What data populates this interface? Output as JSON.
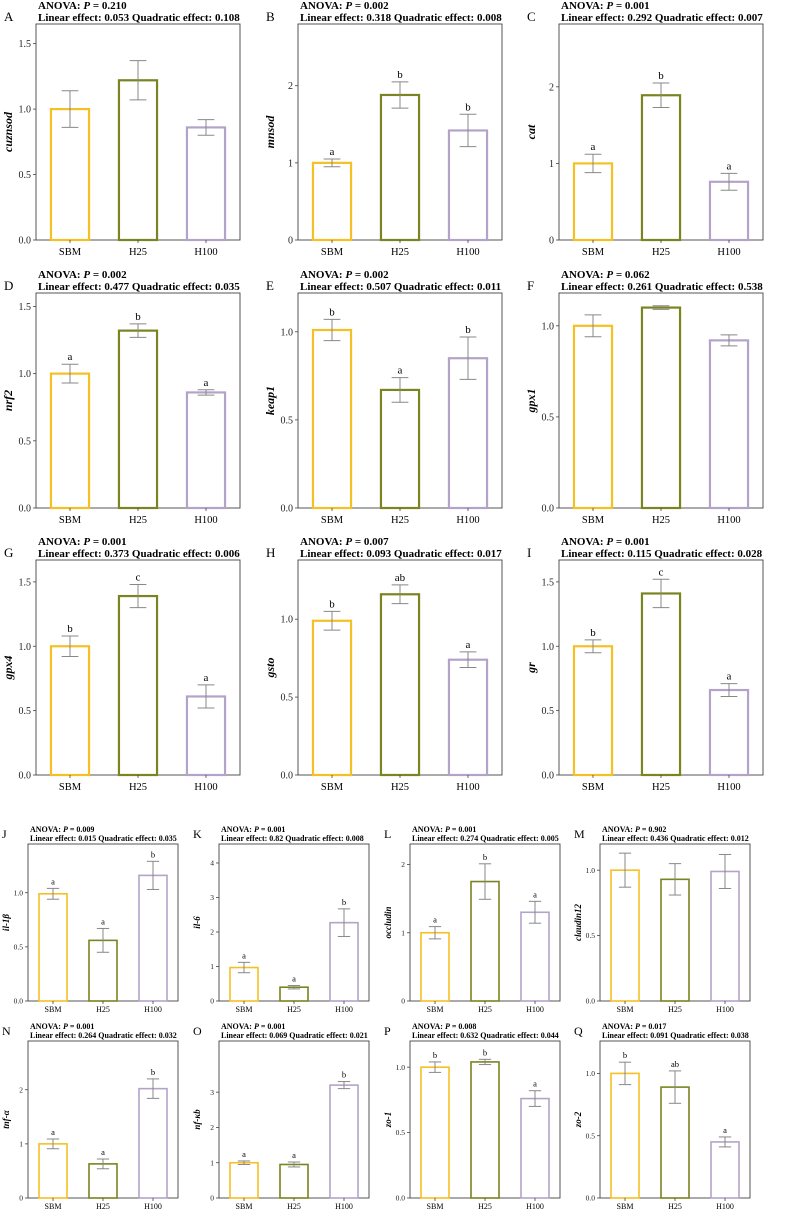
{
  "colors": {
    "SBM": "#F5C024",
    "H25": "#7A8420",
    "H100": "#B4A3C8",
    "error": "#888888",
    "frame": "#444444"
  },
  "chart_data": [
    {
      "panel": "A",
      "type": "bar",
      "categories": [
        "SBM",
        "H25",
        "H100"
      ],
      "ylabel": "cuznsod",
      "values": [
        1.0,
        1.22,
        0.86
      ],
      "errors": [
        0.14,
        0.15,
        0.06
      ],
      "letters": [
        "",
        "",
        ""
      ],
      "ylim": [
        0,
        1.65
      ],
      "yticks": [
        "0.0",
        "0.5",
        "1.0",
        "1.5"
      ],
      "anova_prefix": "ANOVA: ",
      "p_label": "P",
      "anova_p": " = 0.210",
      "linear_label": "Linear effect: ",
      "linear_value": "0.053",
      "quad_label": "Quadratic effect: ",
      "quad_value": "0.108"
    },
    {
      "panel": "B",
      "type": "bar",
      "categories": [
        "SBM",
        "H25",
        "H100"
      ],
      "ylabel": "mnsod",
      "values": [
        1.0,
        1.88,
        1.42
      ],
      "errors": [
        0.05,
        0.17,
        0.21
      ],
      "letters": [
        "a",
        "b",
        "b"
      ],
      "ylim": [
        0,
        2.8
      ],
      "yticks": [
        "0",
        "1",
        "2"
      ],
      "anova_prefix": "ANOVA: ",
      "p_label": "P",
      "anova_p": " = 0.002",
      "linear_label": "Linear effect: ",
      "linear_value": "0.318",
      "quad_label": "Quadratic effect: ",
      "quad_value": "0.008"
    },
    {
      "panel": "C",
      "type": "bar",
      "categories": [
        "SBM",
        "H25",
        "H100"
      ],
      "ylabel": "cat",
      "values": [
        1.0,
        1.89,
        0.76
      ],
      "errors": [
        0.12,
        0.16,
        0.11
      ],
      "letters": [
        "a",
        "b",
        "a"
      ],
      "ylim": [
        0,
        2.82
      ],
      "yticks": [
        "0",
        "1",
        "2"
      ],
      "anova_prefix": "ANOVA: ",
      "p_label": "P",
      "anova_p": " = 0.001",
      "linear_label": "Linear effect: ",
      "linear_value": "0.292",
      "quad_label": "Quadratic effect: ",
      "quad_value": "0.007"
    },
    {
      "panel": "D",
      "type": "bar",
      "categories": [
        "SBM",
        "H25",
        "H100"
      ],
      "ylabel": "nrf2",
      "values": [
        1.0,
        1.32,
        0.86
      ],
      "errors": [
        0.07,
        0.05,
        0.02
      ],
      "letters": [
        "a",
        "b",
        "a"
      ],
      "ylim": [
        0,
        1.6
      ],
      "yticks": [
        "0.0",
        "0.5",
        "1.0",
        "1.5"
      ],
      "anova_prefix": "ANOVA: ",
      "p_label": "P",
      "anova_p": " = 0.002",
      "linear_label": "Linear effect: ",
      "linear_value": "0.477",
      "quad_label": "Quadratic effect: ",
      "quad_value": "0.035"
    },
    {
      "panel": "E",
      "type": "bar",
      "categories": [
        "SBM",
        "H25",
        "H100"
      ],
      "ylabel": "keap1",
      "values": [
        1.01,
        0.67,
        0.85
      ],
      "errors": [
        0.06,
        0.07,
        0.12
      ],
      "letters": [
        "b",
        "a",
        "b"
      ],
      "ylim": [
        0,
        1.22
      ],
      "yticks": [
        "0.0",
        "0.5",
        "1.0"
      ],
      "anova_prefix": "ANOVA: ",
      "p_label": "P",
      "anova_p": " = 0.002",
      "linear_label": "Linear effect: ",
      "linear_value": "0.507",
      "quad_label": "Quadratic effect: ",
      "quad_value": "0.011"
    },
    {
      "panel": "F",
      "type": "bar",
      "categories": [
        "SBM",
        "H25",
        "H100"
      ],
      "ylabel": "gpx1",
      "values": [
        1.0,
        1.1,
        0.92
      ],
      "errors": [
        0.06,
        0.01,
        0.03
      ],
      "letters": [
        "",
        "",
        ""
      ],
      "ylim": [
        0,
        1.18
      ],
      "yticks": [
        "0.0",
        "0.5",
        "1.0"
      ],
      "anova_prefix": "ANOVA: ",
      "p_label": "P",
      "anova_p": " = 0.062",
      "linear_label": "Linear effect: ",
      "linear_value": "0.261",
      "quad_label": "Quadratic effect: ",
      "quad_value": "0.538"
    },
    {
      "panel": "G",
      "type": "bar",
      "categories": [
        "SBM",
        "H25",
        "H100"
      ],
      "ylabel": "gpx4",
      "values": [
        1.0,
        1.39,
        0.61
      ],
      "errors": [
        0.08,
        0.09,
        0.09
      ],
      "letters": [
        "b",
        "c",
        "a"
      ],
      "ylim": [
        0,
        1.67
      ],
      "yticks": [
        "0.0",
        "0.5",
        "1.0",
        "1.5"
      ],
      "anova_prefix": "ANOVA: ",
      "p_label": "P",
      "anova_p": " = 0.001",
      "linear_label": "Linear effect: ",
      "linear_value": "0.373",
      "quad_label": "Quadratic effect: ",
      "quad_value": "0.006"
    },
    {
      "panel": "H",
      "type": "bar",
      "categories": [
        "SBM",
        "H25",
        "H100"
      ],
      "ylabel": "gsto",
      "values": [
        0.99,
        1.16,
        0.74
      ],
      "errors": [
        0.06,
        0.06,
        0.05
      ],
      "letters": [
        "b",
        "ab",
        "a"
      ],
      "ylim": [
        0,
        1.38
      ],
      "yticks": [
        "0.0",
        "0.5",
        "1.0"
      ],
      "anova_prefix": "ANOVA: ",
      "p_label": "P",
      "anova_p": " = 0.007",
      "linear_label": "Linear effect: ",
      "linear_value": "0.093",
      "quad_label": "Quadratic effect: ",
      "quad_value": "0.017"
    },
    {
      "panel": "I",
      "type": "bar",
      "categories": [
        "SBM",
        "H25",
        "H100"
      ],
      "ylabel": "gr",
      "values": [
        1.0,
        1.41,
        0.66
      ],
      "errors": [
        0.05,
        0.11,
        0.05
      ],
      "letters": [
        "b",
        "c",
        "a"
      ],
      "ylim": [
        0,
        1.67
      ],
      "yticks": [
        "0.0",
        "0.5",
        "1.0",
        "1.5"
      ],
      "anova_prefix": "ANOVA: ",
      "p_label": "P",
      "anova_p": " = 0.001",
      "linear_label": "Linear effect: ",
      "linear_value": "0.115",
      "quad_label": "Quadratic effect: ",
      "quad_value": "0.028"
    },
    {
      "panel": "J",
      "type": "bar",
      "categories": [
        "SBM",
        "H25",
        "H100"
      ],
      "ylabel": "il-1β",
      "values": [
        0.99,
        0.56,
        1.16
      ],
      "errors": [
        0.05,
        0.11,
        0.13
      ],
      "letters": [
        "a",
        "a",
        "b"
      ],
      "ylim": [
        0,
        1.45
      ],
      "yticks": [
        "0.0",
        "0.5",
        "1.0"
      ],
      "anova_prefix": "ANOVA: ",
      "p_label": "P",
      "anova_p": " = 0.009",
      "linear_label": "Linear effect: ",
      "linear_value": "0.015",
      "quad_label": "Quadratic effect: ",
      "quad_value": "0.035"
    },
    {
      "panel": "K",
      "type": "bar",
      "categories": [
        "SBM",
        "H25",
        "H100"
      ],
      "ylabel": "il-6",
      "values": [
        0.97,
        0.4,
        2.27
      ],
      "errors": [
        0.15,
        0.05,
        0.4
      ],
      "letters": [
        "a",
        "a",
        "b"
      ],
      "ylim": [
        0,
        4.55
      ],
      "yticks": [
        "0",
        "1",
        "2",
        "3",
        "4"
      ],
      "anova_prefix": "ANOVA: ",
      "p_label": "P",
      "anova_p": " = 0.001",
      "linear_label": "Linear effect: ",
      "linear_value": "0.82",
      "quad_label": "Quadratic effect: ",
      "quad_value": "0.008"
    },
    {
      "panel": "L",
      "type": "bar",
      "categories": [
        "SBM",
        "H25",
        "H100"
      ],
      "ylabel": "occludin",
      "values": [
        1.0,
        1.75,
        1.3
      ],
      "errors": [
        0.09,
        0.26,
        0.16
      ],
      "letters": [
        "a",
        "b",
        "a"
      ],
      "ylim": [
        0,
        2.3
      ],
      "yticks": [
        "0",
        "1",
        "2"
      ],
      "anova_prefix": "ANOVA: ",
      "p_label": "P",
      "anova_p": " = 0.001",
      "linear_label": "Linear effect: ",
      "linear_value": "0.274",
      "quad_label": "Quadratic effect: ",
      "quad_value": "0.005"
    },
    {
      "panel": "M",
      "type": "bar",
      "categories": [
        "SBM",
        "H25",
        "H100"
      ],
      "ylabel": "claudin12",
      "values": [
        1.0,
        0.93,
        0.99
      ],
      "errors": [
        0.13,
        0.12,
        0.13
      ],
      "letters": [
        "",
        "",
        ""
      ],
      "ylim": [
        0,
        1.2
      ],
      "yticks": [
        "0.0",
        "0.5",
        "1.0"
      ],
      "anova_prefix": "ANOVA: ",
      "p_label": "P",
      "anova_p": " = 0.902",
      "linear_label": "Linear effect: ",
      "linear_value": "0.436",
      "quad_label": "Quadratic effect: ",
      "quad_value": "0.012"
    },
    {
      "panel": "N",
      "type": "bar",
      "categories": [
        "SBM",
        "H25",
        "H100"
      ],
      "ylabel": "tnf-α",
      "values": [
        1.0,
        0.63,
        2.02
      ],
      "errors": [
        0.09,
        0.09,
        0.18
      ],
      "letters": [
        "a",
        "a",
        "b"
      ],
      "ylim": [
        0,
        2.9
      ],
      "yticks": [
        "0",
        "1",
        "2"
      ],
      "anova_prefix": "ANOVA: ",
      "p_label": "P",
      "anova_p": " = 0.001",
      "linear_label": "Linear effect: ",
      "linear_value": "0.264",
      "quad_label": "Quadratic effect: ",
      "quad_value": "0.032"
    },
    {
      "panel": "O",
      "type": "bar",
      "categories": [
        "SBM",
        "H25",
        "H100"
      ],
      "ylabel": "nf-κb",
      "values": [
        1.0,
        0.95,
        3.2
      ],
      "errors": [
        0.05,
        0.07,
        0.1
      ],
      "letters": [
        "a",
        "a",
        "b"
      ],
      "ylim": [
        0,
        4.45
      ],
      "yticks": [
        "0",
        "1",
        "2",
        "3"
      ],
      "anova_prefix": "ANOVA: ",
      "p_label": "P",
      "anova_p": " = 0.001",
      "linear_label": "Linear effect: ",
      "linear_value": "0.069",
      "quad_label": "Quadratic effect: ",
      "quad_value": "0.021"
    },
    {
      "panel": "P",
      "type": "bar",
      "categories": [
        "SBM",
        "H25",
        "H100"
      ],
      "ylabel": "zo-1",
      "values": [
        1.0,
        1.04,
        0.76
      ],
      "errors": [
        0.04,
        0.02,
        0.06
      ],
      "letters": [
        "b",
        "b",
        "a"
      ],
      "ylim": [
        0,
        1.2
      ],
      "yticks": [
        "0.0",
        "0.5",
        "1.0"
      ],
      "anova_prefix": "ANOVA: ",
      "p_label": "P",
      "anova_p": " = 0.008",
      "linear_label": "Linear effect: ",
      "linear_value": "0.632",
      "quad_label": "Quadratic effect: ",
      "quad_value": "0.044"
    },
    {
      "panel": "Q",
      "type": "bar",
      "categories": [
        "SBM",
        "H25",
        "H100"
      ],
      "ylabel": "zo-2",
      "values": [
        1.0,
        0.89,
        0.45
      ],
      "errors": [
        0.09,
        0.13,
        0.04
      ],
      "letters": [
        "b",
        "ab",
        "a"
      ],
      "ylim": [
        0,
        1.26
      ],
      "yticks": [
        "0.0",
        "0.5",
        "1.0"
      ],
      "anova_prefix": "ANOVA: ",
      "p_label": "P",
      "anova_p": " = 0.017",
      "linear_label": "Linear effect: ",
      "linear_value": "0.091",
      "quad_label": "Quadratic effect: ",
      "quad_value": "0.038"
    }
  ]
}
